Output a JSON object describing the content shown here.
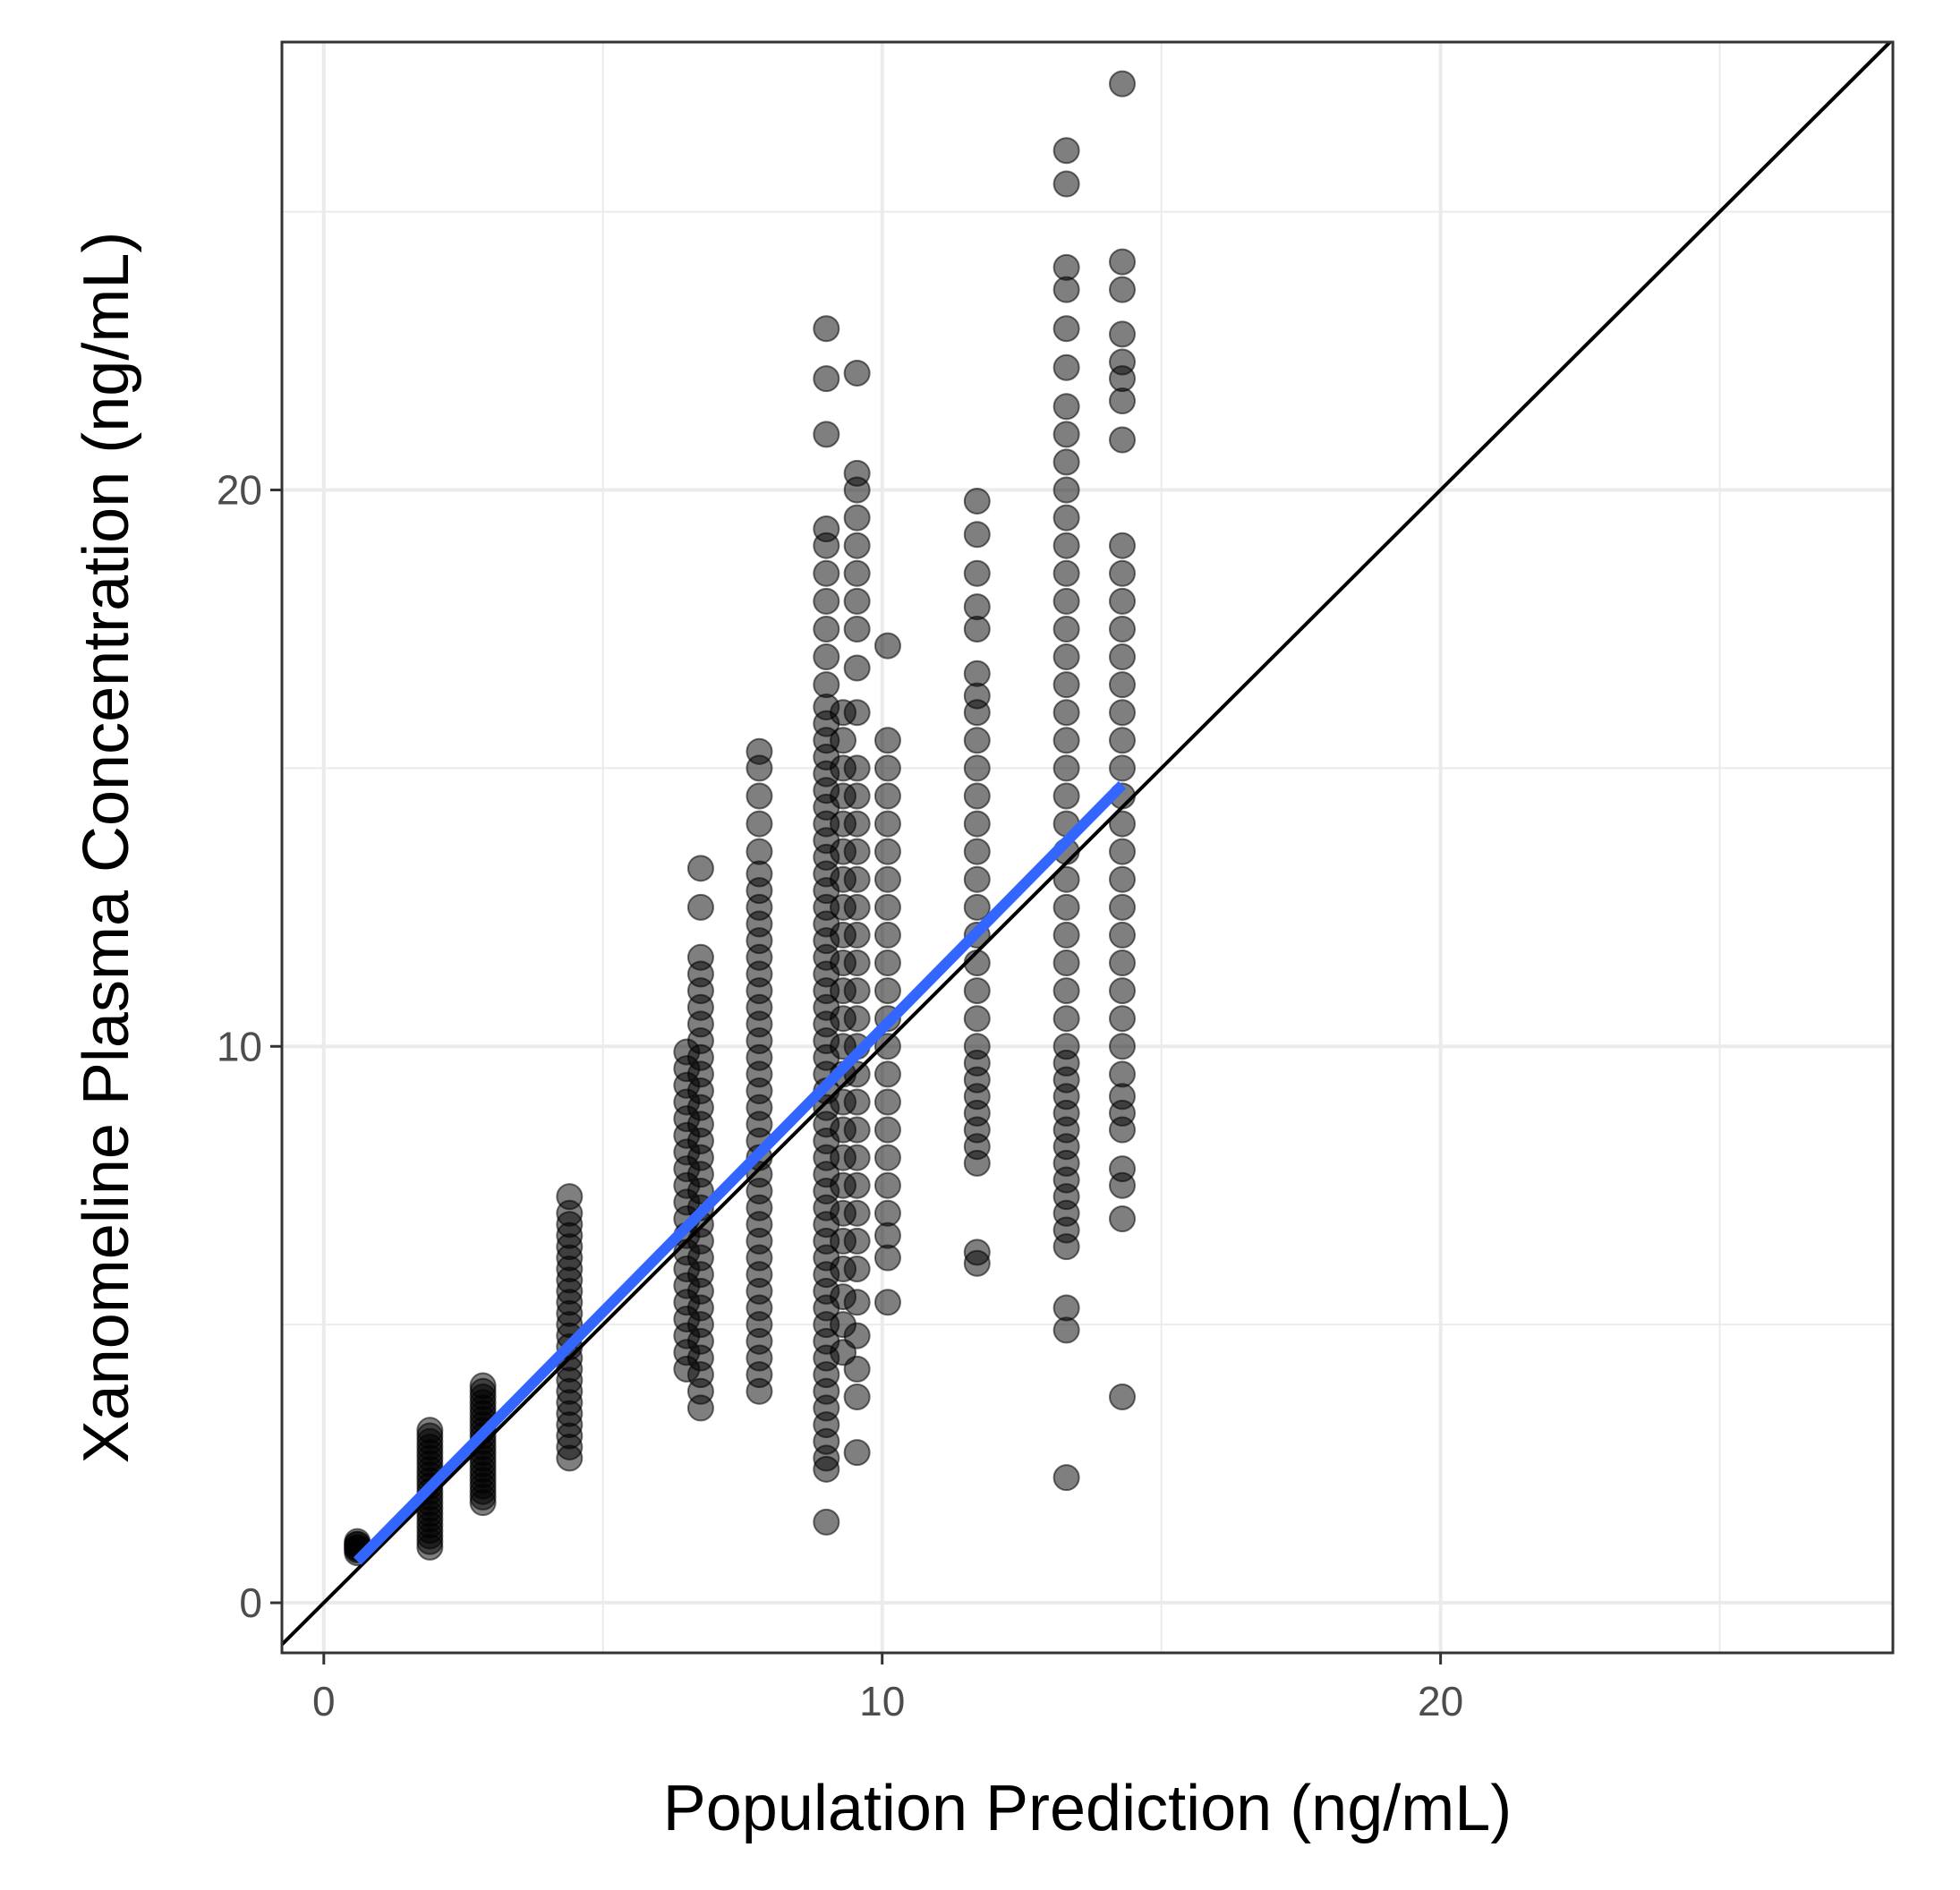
{
  "chart_data": {
    "type": "scatter",
    "title": "",
    "xlabel": "Population Prediction (ng/mL)",
    "ylabel": "Xanomeline Plasma Concentration (ng/mL)",
    "xlim": [
      -0.75,
      28.1
    ],
    "ylim": [
      -0.9,
      28.05
    ],
    "x_ticks": [
      0,
      10,
      20
    ],
    "y_ticks": [
      0,
      10,
      20
    ],
    "grid": true,
    "legend": "none",
    "point_color": "#000000",
    "point_alpha": 0.5,
    "identity_line_color": "#000000",
    "fit_line_color": "#3366FF",
    "fit_line": {
      "x": [
        0.6,
        14.3
      ],
      "y": [
        0.75,
        14.7
      ]
    },
    "identity_line": {
      "x": [
        -0.75,
        28.1
      ],
      "y": [
        -0.75,
        28.1
      ]
    },
    "groups": [
      {
        "x": 0.6,
        "y": [
          0.95,
          1.05,
          1.1,
          0.9,
          1.0,
          1.05,
          0.98
        ]
      },
      {
        "x": 1.9,
        "y": [
          1.0,
          1.1,
          1.2,
          1.3,
          1.4,
          1.5,
          1.6,
          1.7,
          1.8,
          1.9,
          2.0,
          2.1,
          2.2,
          2.3,
          2.4,
          2.5,
          2.6,
          2.7,
          2.8,
          2.9,
          3.0,
          3.1
        ]
      },
      {
        "x": 2.85,
        "y": [
          1.8,
          1.9,
          2.0,
          2.1,
          2.2,
          2.3,
          2.4,
          2.5,
          2.6,
          2.7,
          2.8,
          2.9,
          3.0,
          3.1,
          3.2,
          3.3,
          3.4,
          3.5,
          3.6,
          3.7,
          3.8,
          3.9
        ]
      },
      {
        "x": 4.4,
        "y": [
          2.6,
          2.8,
          3.0,
          3.2,
          3.4,
          3.6,
          3.8,
          4.0,
          4.2,
          4.4,
          4.6,
          4.8,
          5.0,
          5.2,
          5.4,
          5.6,
          5.8,
          6.0,
          6.2,
          6.4,
          6.6,
          6.8,
          7.0,
          7.3
        ]
      },
      {
        "x": 6.5,
        "y": [
          4.2,
          4.5,
          4.8,
          5.1,
          5.4,
          5.7,
          6.0,
          6.3,
          6.6,
          6.9,
          7.2,
          7.5,
          7.8,
          8.1,
          8.4,
          8.7,
          9.0,
          9.3,
          9.6,
          9.9
        ]
      },
      {
        "x": 6.75,
        "y": [
          3.5,
          3.8,
          4.1,
          4.4,
          4.7,
          5.0,
          5.3,
          5.6,
          5.9,
          6.2,
          6.5,
          6.8,
          7.1,
          7.4,
          7.7,
          8.0,
          8.3,
          8.6,
          8.9,
          9.2,
          9.5,
          9.8,
          10.1,
          10.4,
          10.7,
          11.0,
          11.3,
          11.6,
          12.5,
          13.2
        ]
      },
      {
        "x": 7.8,
        "y": [
          3.8,
          4.1,
          4.4,
          4.7,
          5.0,
          5.3,
          5.6,
          5.9,
          6.2,
          6.5,
          6.8,
          7.1,
          7.4,
          7.7,
          8.0,
          8.3,
          8.6,
          8.9,
          9.2,
          9.5,
          9.8,
          10.1,
          10.4,
          10.7,
          11.0,
          11.3,
          11.6,
          11.9,
          12.2,
          12.5,
          12.8,
          13.1,
          13.5,
          14.0,
          14.5,
          15.0,
          15.3
        ]
      },
      {
        "x": 9.0,
        "y": [
          1.45,
          2.4,
          2.6,
          2.9,
          3.2,
          3.5,
          3.8,
          4.1,
          4.4,
          4.7,
          5.0,
          5.3,
          5.6,
          5.9,
          6.2,
          6.5,
          6.8,
          7.1,
          7.4,
          7.7,
          8.0,
          8.3,
          8.6,
          8.9,
          9.2,
          9.5,
          9.8,
          10.1,
          10.4,
          10.7,
          11.0,
          11.3,
          11.6,
          11.9,
          12.2,
          12.5,
          12.8,
          13.1,
          13.4,
          13.7,
          14.0,
          14.3,
          14.6,
          14.9,
          15.2,
          15.5,
          15.8,
          16.1,
          16.5,
          17.0,
          17.5,
          18.0,
          18.5,
          19.0,
          19.3,
          21.0,
          22.0,
          22.9
        ]
      },
      {
        "x": 9.3,
        "y": [
          4.5,
          5.0,
          5.5,
          6.0,
          6.5,
          7.0,
          7.5,
          8.0,
          8.5,
          9.0,
          9.5,
          10.0,
          10.5,
          11.0,
          11.5,
          12.0,
          12.5,
          13.0,
          13.5,
          14.0,
          14.5,
          15.0,
          15.5,
          16.0
        ]
      },
      {
        "x": 9.55,
        "y": [
          2.7,
          3.7,
          4.2,
          4.8,
          5.4,
          6.0,
          6.5,
          7.0,
          7.5,
          8.0,
          8.5,
          9.0,
          9.5,
          10.0,
          10.5,
          11.0,
          11.5,
          12.0,
          12.5,
          13.0,
          13.5,
          14.0,
          14.5,
          15.0,
          16.0,
          16.8,
          17.5,
          18.0,
          18.5,
          19.0,
          19.5,
          20.0,
          20.3,
          22.1
        ]
      },
      {
        "x": 10.1,
        "y": [
          5.4,
          6.2,
          6.6,
          7.0,
          7.5,
          8.0,
          8.5,
          9.0,
          9.5,
          10.0,
          10.5,
          11.0,
          11.5,
          12.0,
          12.5,
          13.0,
          13.5,
          14.0,
          14.5,
          15.0,
          15.5,
          17.2
        ]
      },
      {
        "x": 11.7,
        "y": [
          6.1,
          6.3,
          7.9,
          8.2,
          8.5,
          8.8,
          9.1,
          9.4,
          9.7,
          10.0,
          10.5,
          11.0,
          11.5,
          12.0,
          12.5,
          13.0,
          13.5,
          14.0,
          14.5,
          15.0,
          15.5,
          16.0,
          16.3,
          16.7,
          17.5,
          17.9,
          18.5,
          19.2,
          19.8
        ]
      },
      {
        "x": 13.3,
        "y": [
          2.25,
          4.9,
          5.3,
          6.4,
          6.7,
          7.0,
          7.3,
          7.6,
          7.9,
          8.2,
          8.5,
          8.8,
          9.1,
          9.4,
          9.7,
          10.0,
          10.5,
          11.0,
          11.5,
          12.0,
          12.5,
          13.0,
          13.5,
          14.0,
          14.5,
          15.0,
          15.5,
          16.0,
          16.5,
          17.0,
          17.5,
          18.0,
          18.5,
          19.0,
          19.5,
          20.0,
          20.5,
          21.0,
          21.5,
          22.2,
          22.9,
          23.6,
          24.0,
          25.5,
          26.1
        ]
      },
      {
        "x": 14.3,
        "y": [
          3.7,
          6.9,
          7.5,
          7.8,
          8.5,
          8.8,
          9.1,
          9.5,
          10.0,
          10.5,
          11.0,
          11.5,
          12.0,
          12.5,
          13.0,
          13.5,
          14.0,
          14.5,
          15.0,
          15.5,
          16.0,
          16.5,
          17.0,
          17.5,
          18.0,
          18.5,
          19.0,
          20.9,
          21.6,
          22.0,
          22.3,
          22.8,
          23.6,
          24.1,
          27.3
        ]
      }
    ]
  }
}
